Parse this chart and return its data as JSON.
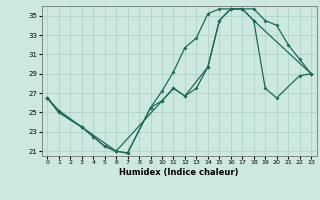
{
  "xlabel": "Humidex (Indice chaleur)",
  "bg_color": "#cde8e0",
  "grid_color": "#aacfc8",
  "line_color": "#1a6b5a",
  "xlim": [
    -0.5,
    23.5
  ],
  "ylim": [
    20.5,
    36.0
  ],
  "xticks": [
    0,
    1,
    2,
    3,
    4,
    5,
    6,
    7,
    8,
    9,
    10,
    11,
    12,
    13,
    14,
    15,
    16,
    17,
    18,
    19,
    20,
    21,
    22,
    23
  ],
  "yticks": [
    21,
    23,
    25,
    27,
    29,
    31,
    33,
    35
  ],
  "curve1_x": [
    0,
    1,
    3,
    4,
    5,
    6,
    7,
    9,
    10,
    11,
    12,
    13,
    14,
    15,
    16,
    17,
    18,
    19,
    20,
    21,
    22,
    23
  ],
  "curve1_y": [
    26.5,
    25.0,
    23.5,
    22.5,
    21.5,
    21.0,
    20.8,
    25.5,
    27.2,
    29.2,
    31.7,
    32.7,
    35.2,
    35.7,
    35.7,
    35.7,
    35.7,
    34.5,
    34.0,
    32.0,
    30.5,
    29.0
  ],
  "curve2_x": [
    0,
    1,
    3,
    4,
    5,
    6,
    7,
    9,
    10,
    11,
    12,
    13,
    14,
    15,
    16,
    17,
    18,
    19,
    20,
    22,
    23
  ],
  "curve2_y": [
    26.5,
    25.0,
    23.5,
    22.5,
    21.5,
    21.0,
    20.8,
    25.5,
    26.2,
    27.5,
    26.7,
    27.5,
    29.7,
    34.5,
    35.7,
    35.7,
    34.5,
    27.5,
    26.5,
    28.8,
    29.0
  ],
  "curve3_x": [
    0,
    1,
    3,
    6,
    10,
    11,
    12,
    14,
    15,
    16,
    17,
    18,
    23
  ],
  "curve3_y": [
    26.5,
    25.2,
    23.5,
    21.0,
    26.2,
    27.5,
    26.7,
    29.7,
    34.5,
    35.7,
    35.7,
    34.5,
    29.0
  ]
}
